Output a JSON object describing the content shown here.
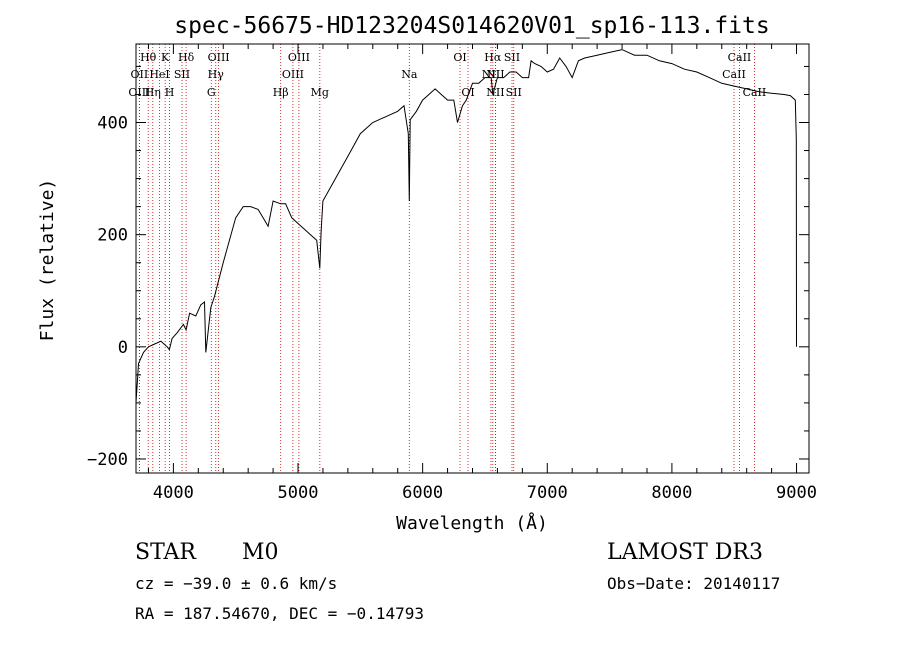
{
  "chart_data": {
    "type": "line",
    "title": "spec-56675-HD123204S014620V01_sp16-113.fits",
    "xlabel": "Wavelength (Å)",
    "ylabel": "Flux (relative)",
    "xlim": [
      3700,
      9100
    ],
    "ylim": [
      -225,
      540
    ],
    "x_ticks": [
      4000,
      5000,
      6000,
      7000,
      8000,
      9000
    ],
    "x_tick_labels": [
      "4000",
      "5000",
      "6000",
      "7000",
      "8000",
      "9000"
    ],
    "y_ticks": [
      -200,
      0,
      200,
      400
    ],
    "y_tick_labels": [
      "−200",
      "0",
      "200",
      "400"
    ],
    "grid": false,
    "series": [
      {
        "name": "flux",
        "x": [
          3700,
          3720,
          3760,
          3800,
          3850,
          3900,
          3950,
          3968,
          3990,
          4030,
          4080,
          4102,
          4130,
          4180,
          4220,
          4250,
          4260,
          4300,
          4330,
          4400,
          4500,
          4560,
          4620,
          4680,
          4720,
          4760,
          4800,
          4861,
          4900,
          4950,
          5000,
          5050,
          5100,
          5150,
          5175,
          5185,
          5200,
          5300,
          5400,
          5500,
          5600,
          5700,
          5800,
          5850,
          5885,
          5893,
          5900,
          5950,
          6000,
          6050,
          6100,
          6150,
          6200,
          6250,
          6280,
          6320,
          6350,
          6400,
          6450,
          6500,
          6550,
          6563,
          6600,
          6650,
          6700,
          6750,
          6800,
          6850,
          6870,
          6900,
          6950,
          7000,
          7050,
          7100,
          7150,
          7200,
          7250,
          7300,
          7400,
          7500,
          7600,
          7650,
          7700,
          7800,
          7900,
          8000,
          8100,
          8200,
          8300,
          8400,
          8500,
          8600,
          8700,
          8800,
          8900,
          8950,
          8990,
          8998,
          9000
        ],
        "values": [
          -100,
          -30,
          -10,
          0,
          5,
          10,
          0,
          -5,
          15,
          25,
          40,
          30,
          60,
          55,
          75,
          80,
          -10,
          70,
          90,
          150,
          230,
          250,
          250,
          245,
          230,
          215,
          260,
          255,
          255,
          230,
          220,
          210,
          200,
          190,
          140,
          205,
          260,
          300,
          340,
          380,
          400,
          410,
          420,
          430,
          380,
          260,
          405,
          420,
          440,
          450,
          460,
          450,
          440,
          440,
          400,
          430,
          440,
          470,
          470,
          480,
          480,
          450,
          480,
          480,
          490,
          490,
          480,
          480,
          510,
          505,
          500,
          490,
          495,
          515,
          500,
          480,
          510,
          515,
          520,
          525,
          530,
          525,
          520,
          520,
          510,
          505,
          495,
          490,
          480,
          470,
          465,
          460,
          455,
          452,
          450,
          448,
          440,
          370,
          0
        ]
      }
    ],
    "line_markers": [
      {
        "label": "Hθ",
        "x": 3798,
        "row": 0
      },
      {
        "label": "OII",
        "x": 3727,
        "row": 1
      },
      {
        "label": "OIII",
        "x": 3727,
        "row": 2
      },
      {
        "label": "K",
        "x": 3934,
        "row": 0
      },
      {
        "label": "HeI",
        "x": 3889,
        "row": 1
      },
      {
        "label": "Hη",
        "x": 3835,
        "row": 2
      },
      {
        "label": "H",
        "x": 3969,
        "row": 2
      },
      {
        "label": "Hδ",
        "x": 4102,
        "row": 0
      },
      {
        "label": "SII",
        "x": 4069,
        "row": 1
      },
      {
        "label": "OIII",
        "x": 4363,
        "row": 0
      },
      {
        "label": "Hγ",
        "x": 4340,
        "row": 1
      },
      {
        "label": "G",
        "x": 4304,
        "row": 2
      },
      {
        "label": "OIII",
        "x": 5007,
        "row": 0
      },
      {
        "label": "OIII",
        "x": 4959,
        "row": 1
      },
      {
        "label": "Hβ",
        "x": 4861,
        "row": 2
      },
      {
        "label": "Mg",
        "x": 5175,
        "row": 2
      },
      {
        "label": "Na",
        "x": 5893,
        "row": 1
      },
      {
        "label": "OI",
        "x": 6300,
        "row": 0
      },
      {
        "label": "OI",
        "x": 6364,
        "row": 2
      },
      {
        "label": "Hα",
        "x": 6563,
        "row": 0
      },
      {
        "label": "SII",
        "x": 6717,
        "row": 0
      },
      {
        "label": "NII",
        "x": 6548,
        "row": 1
      },
      {
        "label": "NII",
        "x": 6584,
        "row": 1
      },
      {
        "label": "NII",
        "x": 6584,
        "row": 2
      },
      {
        "label": "SII",
        "x": 6731,
        "row": 2
      },
      {
        "label": "CaII",
        "x": 8542,
        "row": 0
      },
      {
        "label": "CaII",
        "x": 8498,
        "row": 1
      },
      {
        "label": "CaII",
        "x": 8662,
        "row": 2
      }
    ]
  },
  "info": {
    "object_class": "STAR",
    "subclass": "M0",
    "survey": "LAMOST DR3",
    "cz": "cz = −39.0 ± 0.6 km/s",
    "obs_date": "Obs−Date: 20140117",
    "coords": "RA = 187.54670, DEC =  −0.14793"
  },
  "colors": {
    "spectrum": "#000000",
    "marker_line": "#cc0000",
    "axis": "#000000"
  }
}
